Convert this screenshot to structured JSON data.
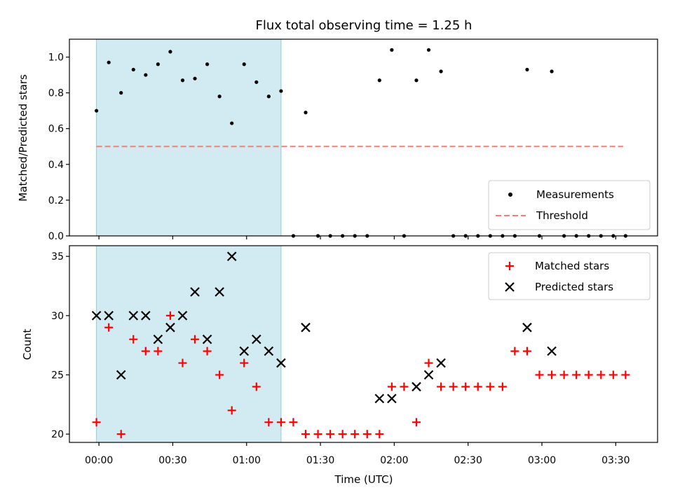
{
  "chart_data": [
    {
      "type": "scatter",
      "title": "Flux total observing time = 1.25 h",
      "xlabel": "",
      "ylabel": "Matched/Predicted stars",
      "ylim": [
        0,
        1.1
      ],
      "yticks": [
        "0.0",
        "0.2",
        "0.4",
        "0.6",
        "0.8",
        "1.0"
      ],
      "xlim": [
        -12,
        227
      ],
      "x_unit": "minutes after 00:00 UTC",
      "shaded_region": {
        "x_start": -1,
        "x_end": 74,
        "color": "#add8e6"
      },
      "threshold": {
        "y": 0.5,
        "x_start": -1,
        "x_end": 213,
        "color": "#f08080",
        "style": "dashed"
      },
      "legend": {
        "position": "lower right",
        "items": [
          "Measurements",
          "Threshold"
        ]
      },
      "series": [
        {
          "name": "Measurements",
          "x": [
            -1,
            4,
            9,
            14,
            19,
            24,
            29,
            34,
            39,
            44,
            49,
            54,
            59,
            64,
            69,
            74,
            79,
            84,
            89,
            94,
            99,
            104,
            109,
            114,
            119,
            124,
            129,
            134,
            139,
            144,
            149,
            154,
            159,
            164,
            169,
            174,
            179,
            184,
            189,
            194,
            199,
            204,
            209,
            214
          ],
          "y": [
            0.7,
            0.97,
            0.8,
            0.93,
            0.9,
            0.96,
            1.03,
            0.87,
            0.88,
            0.96,
            0.78,
            0.63,
            0.96,
            0.86,
            0.78,
            0.81,
            0.0,
            0.69,
            0.0,
            0.0,
            0.0,
            0.0,
            0.0,
            0.87,
            1.04,
            0.0,
            0.87,
            1.04,
            0.92,
            0.0,
            0.0,
            0.0,
            0.0,
            0.0,
            0.0,
            0.93,
            0.0,
            0.92,
            0.0,
            0.0,
            0.0,
            0.0,
            0.0,
            0.0
          ]
        }
      ]
    },
    {
      "type": "scatter",
      "title": "",
      "xlabel": "Time (UTC)",
      "ylabel": "Count",
      "ylim": [
        19.3,
        35.9
      ],
      "yticks": [
        "20",
        "25",
        "30",
        "35"
      ],
      "xlim": [
        -12,
        227
      ],
      "x_unit": "minutes after 00:00 UTC",
      "xticks": [
        "00:00",
        "00:30",
        "01:00",
        "01:30",
        "02:00",
        "02:30",
        "03:00",
        "03:30"
      ],
      "shaded_region": {
        "x_start": -1,
        "x_end": 74,
        "color": "#add8e6"
      },
      "legend": {
        "position": "upper right",
        "items": [
          "Matched stars",
          "Predicted stars"
        ]
      },
      "series": [
        {
          "name": "Matched stars",
          "marker": "+",
          "color": "#ff0000",
          "x": [
            -1,
            4,
            9,
            14,
            19,
            24,
            29,
            34,
            39,
            44,
            49,
            54,
            59,
            64,
            69,
            74,
            79,
            84,
            89,
            94,
            99,
            104,
            109,
            114,
            119,
            124,
            129,
            134,
            139,
            144,
            149,
            154,
            159,
            164,
            169,
            174,
            179,
            184,
            189,
            194,
            199,
            204,
            209,
            214
          ],
          "y": [
            21,
            29,
            20,
            28,
            27,
            27,
            30,
            26,
            28,
            27,
            25,
            22,
            26,
            24,
            21,
            21,
            21,
            20,
            20,
            20,
            20,
            20,
            20,
            20,
            24,
            24,
            21,
            26,
            24,
            24,
            24,
            24,
            24,
            24,
            27,
            27,
            25,
            25,
            25,
            25,
            25,
            25,
            25,
            25
          ]
        },
        {
          "name": "Predicted stars",
          "marker": "x",
          "color": "#000000",
          "x": [
            -1,
            4,
            9,
            14,
            19,
            24,
            29,
            34,
            39,
            44,
            49,
            54,
            59,
            64,
            69,
            74,
            84,
            114,
            119,
            129,
            134,
            139,
            174,
            184
          ],
          "y": [
            30,
            30,
            25,
            30,
            30,
            28,
            29,
            30,
            32,
            28,
            32,
            35,
            27,
            28,
            27,
            26,
            29,
            23,
            23,
            24,
            25,
            26,
            29,
            27
          ]
        }
      ]
    }
  ]
}
